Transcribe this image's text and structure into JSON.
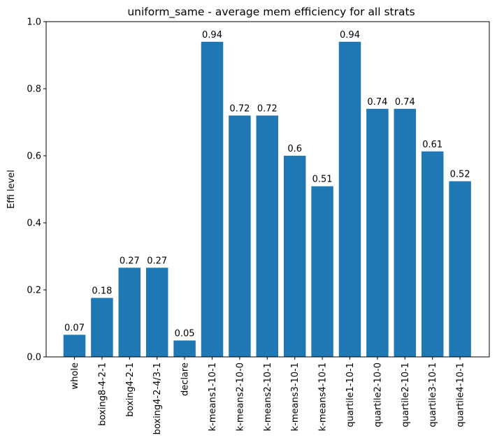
{
  "chart_data": {
    "type": "bar",
    "title": "uniform_same - average mem efficiency for all strats",
    "xlabel": "",
    "ylabel": "Effi level",
    "ylim": [
      0,
      1.0
    ],
    "yticks": [
      0.0,
      0.2,
      0.4,
      0.6,
      0.8,
      1.0
    ],
    "ytick_labels": [
      "0.0",
      "0.2",
      "0.4",
      "0.6",
      "0.8",
      "1.0"
    ],
    "bar_color": "#1f77b4",
    "categories": [
      "whole",
      "boxing8-4-2-1",
      "boxing4-2-1",
      "boxing4-2-4/3-1",
      "declare",
      "k-means1-10-1",
      "k-means2-10-0",
      "k-means2-10-1",
      "k-means3-10-1",
      "k-means4-10-1",
      "quartile1-10-1",
      "quartile2-10-0",
      "quartile2-10-1",
      "quartile3-10-1",
      "quartile4-10-1"
    ],
    "values": [
      0.066,
      0.176,
      0.266,
      0.266,
      0.049,
      0.94,
      0.72,
      0.72,
      0.6,
      0.509,
      0.94,
      0.74,
      0.74,
      0.613,
      0.524
    ],
    "labels": [
      "0.07",
      "0.18",
      "0.27",
      "0.27",
      "0.05",
      "0.94",
      "0.72",
      "0.72",
      "0.6",
      "0.51",
      "0.94",
      "0.74",
      "0.74",
      "0.61",
      "0.52"
    ]
  }
}
